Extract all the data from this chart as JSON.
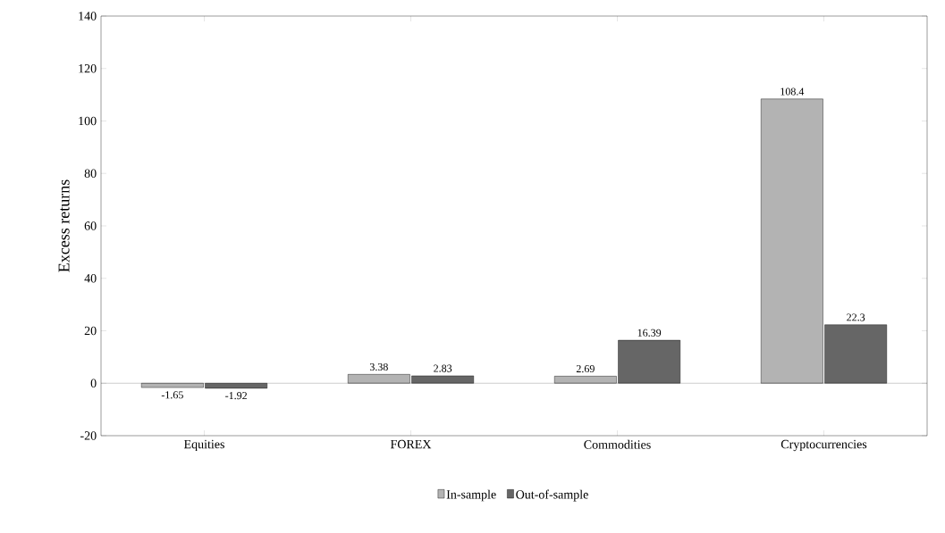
{
  "chart_data": {
    "type": "bar",
    "ylabel": "Excess returns",
    "categories": [
      "Equities",
      "FOREX",
      "Commodities",
      "Cryptocurrencies"
    ],
    "series": [
      {
        "name": "In-sample",
        "color": "#b3b3b3",
        "values": [
          -1.65,
          3.38,
          2.69,
          108.4
        ]
      },
      {
        "name": "Out-of-sample",
        "color": "#666666",
        "values": [
          -1.92,
          2.83,
          16.39,
          22.3
        ]
      }
    ],
    "ylim": [
      -20,
      140
    ],
    "yticks": [
      -20,
      0,
      20,
      40,
      60,
      80,
      100,
      120,
      140
    ],
    "ref_lines": [
      {
        "axis": "y",
        "value": 0
      }
    ],
    "data_labels": true,
    "legend": "bottom",
    "grid": false
  }
}
